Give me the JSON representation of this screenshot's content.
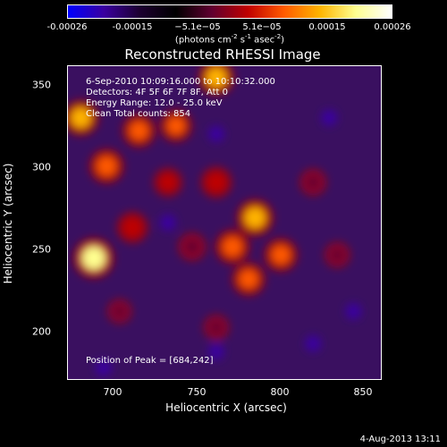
{
  "colorbar": {
    "ticks": [
      "-0.00026",
      "-0.00015",
      "−5.1e−05",
      "5.1e−05",
      "0.00015",
      "0.00026"
    ],
    "units_prefix": "(photons cm",
    "units_exp1": "-2",
    "units_mid": " s",
    "units_exp2": "-1",
    "units_mid2": " asec",
    "units_exp3": "-2",
    "units_suffix": ")"
  },
  "chart_data": {
    "type": "heatmap",
    "title": "Reconstructed RHESSI Image",
    "xlabel": "Heliocentric X (arcsec)",
    "ylabel": "Heliocentric Y (arcsec)",
    "xlim": [
      668,
      862
    ],
    "ylim": [
      168,
      362
    ],
    "xticks": [
      "700",
      "750",
      "800",
      "850"
    ],
    "yticks": [
      "350",
      "300",
      "250",
      "200"
    ],
    "colorbar_range": [
      -0.00026,
      0.00026
    ],
    "colormap": "red-temperature",
    "peak": [
      684,
      242
    ],
    "bright_sources": [
      {
        "x": 684,
        "y": 243,
        "intensity": 1.0
      },
      {
        "x": 692,
        "y": 300,
        "intensity": 0.75
      },
      {
        "x": 676,
        "y": 330,
        "intensity": 0.8
      },
      {
        "x": 712,
        "y": 322,
        "intensity": 0.7
      },
      {
        "x": 735,
        "y": 325,
        "intensity": 0.65
      },
      {
        "x": 760,
        "y": 355,
        "intensity": 0.8
      },
      {
        "x": 784,
        "y": 268,
        "intensity": 0.85
      },
      {
        "x": 770,
        "y": 250,
        "intensity": 0.75
      },
      {
        "x": 800,
        "y": 245,
        "intensity": 0.7
      },
      {
        "x": 780,
        "y": 230,
        "intensity": 0.7
      },
      {
        "x": 760,
        "y": 290,
        "intensity": 0.6
      },
      {
        "x": 708,
        "y": 262,
        "intensity": 0.6
      },
      {
        "x": 730,
        "y": 290,
        "intensity": 0.5
      },
      {
        "x": 745,
        "y": 250,
        "intensity": 0.45
      },
      {
        "x": 820,
        "y": 290,
        "intensity": 0.4
      },
      {
        "x": 835,
        "y": 245,
        "intensity": 0.35
      },
      {
        "x": 760,
        "y": 200,
        "intensity": 0.35
      },
      {
        "x": 700,
        "y": 210,
        "intensity": 0.3
      }
    ],
    "annotations": [
      "6-Sep-2010 10:09:16.000 to 10:10:32.000",
      "Detectors: 4F 5F 6F 7F 8F, Att 0",
      "Energy Range: 12.0 - 25.0 keV",
      "Clean     Total counts: 854",
      "Position of Peak = [684,242]"
    ]
  },
  "footer": {
    "date": "4-Aug-2013 13:11"
  },
  "colors": {
    "background": "#000000",
    "colorbar_stops": [
      "#0000ff",
      "#3a00a0",
      "#1c0030",
      "#000000",
      "#600030",
      "#c00000",
      "#ff5a00",
      "#ffb400",
      "#ffff90",
      "#ffffff"
    ]
  }
}
